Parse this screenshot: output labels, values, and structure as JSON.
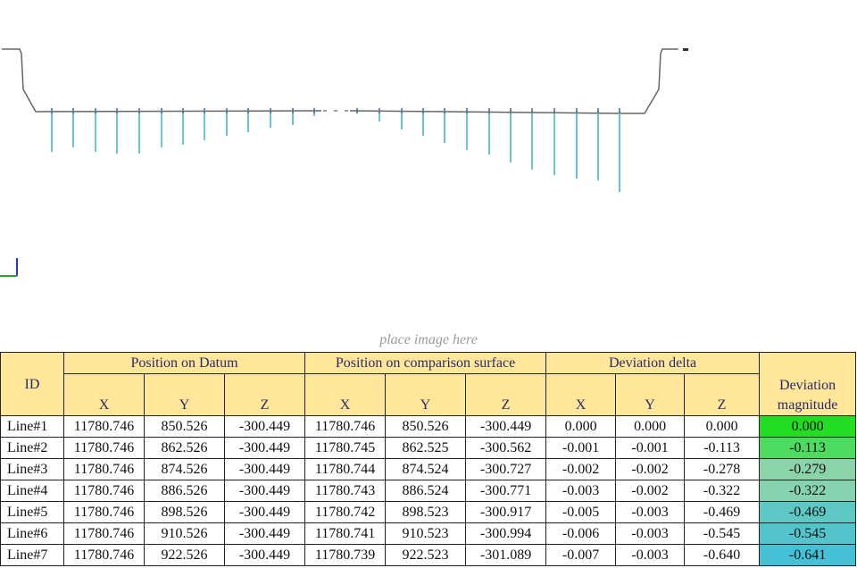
{
  "viewport": {
    "placeholder": "place image here",
    "colors": {
      "surface_line": "#666666",
      "deviation_line": "#6cc3d5",
      "axis_x": "#2ca02c",
      "axis_y": "#1f3fbf"
    }
  },
  "table": {
    "header": {
      "id": "ID",
      "group_datum": "Position on Datum",
      "group_comparison": "Position on comparison surface",
      "group_delta": "Deviation delta",
      "magnitude": "Deviation magnitude",
      "axes": [
        "X",
        "Y",
        "Z"
      ]
    },
    "rows": [
      {
        "id": "Line#1",
        "dx": "11780.746",
        "dy": "850.526",
        "dz": "-300.449",
        "cx": "11780.746",
        "cy": "850.526",
        "cz": "-300.449",
        "ddx": "0.000",
        "ddy": "0.000",
        "ddz": "0.000",
        "mag": "0.000",
        "color": "#22dd22"
      },
      {
        "id": "Line#2",
        "dx": "11780.746",
        "dy": "862.526",
        "dz": "-300.449",
        "cx": "11780.745",
        "cy": "862.525",
        "cz": "-300.562",
        "ddx": "-0.001",
        "ddy": "-0.001",
        "ddz": "-0.113",
        "mag": "-0.113",
        "color": "#4ddb60"
      },
      {
        "id": "Line#3",
        "dx": "11780.746",
        "dy": "874.526",
        "dz": "-300.449",
        "cx": "11780.744",
        "cy": "874.524",
        "cz": "-300.727",
        "ddx": "-0.002",
        "ddy": "-0.002",
        "ddz": "-0.278",
        "mag": "-0.279",
        "color": "#8bd3a8"
      },
      {
        "id": "Line#4",
        "dx": "11780.746",
        "dy": "886.526",
        "dz": "-300.449",
        "cx": "11780.743",
        "cy": "886.524",
        "cz": "-300.771",
        "ddx": "-0.003",
        "ddy": "-0.002",
        "ddz": "-0.322",
        "mag": "-0.322",
        "color": "#87d2b0"
      },
      {
        "id": "Line#5",
        "dx": "11780.746",
        "dy": "898.526",
        "dz": "-300.449",
        "cx": "11780.742",
        "cy": "898.523",
        "cz": "-300.917",
        "ddx": "-0.005",
        "ddy": "-0.003",
        "ddz": "-0.469",
        "mag": "-0.469",
        "color": "#5ec8c4"
      },
      {
        "id": "Line#6",
        "dx": "11780.746",
        "dy": "910.526",
        "dz": "-300.449",
        "cx": "11780.741",
        "cy": "910.523",
        "cz": "-300.994",
        "ddx": "-0.006",
        "ddy": "-0.003",
        "ddz": "-0.545",
        "mag": "-0.545",
        "color": "#54c4cc"
      },
      {
        "id": "Line#7",
        "dx": "11780.746",
        "dy": "922.526",
        "dz": "-300.449",
        "cx": "11780.739",
        "cy": "922.523",
        "cz": "-301.089",
        "ddx": "-0.007",
        "ddy": "-0.003",
        "ddz": "-0.640",
        "mag": "-0.641",
        "color": "#45c0d4"
      }
    ]
  }
}
